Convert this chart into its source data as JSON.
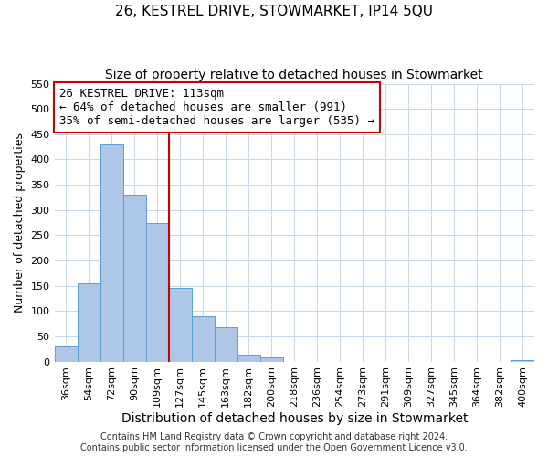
{
  "title": "26, KESTREL DRIVE, STOWMARKET, IP14 5QU",
  "subtitle": "Size of property relative to detached houses in Stowmarket",
  "xlabel": "Distribution of detached houses by size in Stowmarket",
  "ylabel": "Number of detached properties",
  "bin_labels": [
    "36sqm",
    "54sqm",
    "72sqm",
    "90sqm",
    "109sqm",
    "127sqm",
    "145sqm",
    "163sqm",
    "182sqm",
    "200sqm",
    "218sqm",
    "236sqm",
    "254sqm",
    "273sqm",
    "291sqm",
    "309sqm",
    "327sqm",
    "345sqm",
    "364sqm",
    "382sqm",
    "400sqm"
  ],
  "bar_heights": [
    30,
    155,
    430,
    330,
    275,
    145,
    90,
    68,
    13,
    8,
    0,
    0,
    0,
    0,
    0,
    0,
    0,
    0,
    0,
    0,
    3
  ],
  "bar_color": "#aec6e8",
  "bar_edge_color": "#5a9fd4",
  "vline_x_idx": 4.5,
  "vline_color": "#cc0000",
  "annotation_line1": "26 KESTREL DRIVE: 113sqm",
  "annotation_line2": "← 64% of detached houses are smaller (991)",
  "annotation_line3": "35% of semi-detached houses are larger (535) →",
  "annotation_box_edge_color": "#cc0000",
  "ylim": [
    0,
    550
  ],
  "yticks": [
    0,
    50,
    100,
    150,
    200,
    250,
    300,
    350,
    400,
    450,
    500,
    550
  ],
  "footer_line1": "Contains HM Land Registry data © Crown copyright and database right 2024.",
  "footer_line2": "Contains public sector information licensed under the Open Government Licence v3.0.",
  "bg_color": "#ffffff",
  "grid_color": "#c8d8e8",
  "title_fontsize": 11,
  "subtitle_fontsize": 10,
  "xlabel_fontsize": 10,
  "ylabel_fontsize": 9,
  "tick_fontsize": 8,
  "annotation_fontsize": 9,
  "footer_fontsize": 7
}
